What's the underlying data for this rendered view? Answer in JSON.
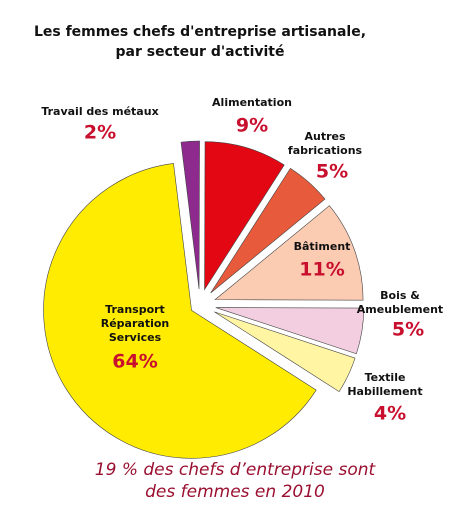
{
  "chart_data": {
    "type": "pie",
    "title": "Les femmes chefs d'entreprise artisanale,\npar secteur d'activité",
    "categories": [
      "Travail des métaux",
      "Alimentation",
      "Autres\nfabrications",
      "Bâtiment",
      "Bois &\nAmeublement",
      "Textile\nHabillement",
      "Transport\nRéparation\nServices"
    ],
    "values": [
      2,
      9,
      5,
      11,
      5,
      4,
      64
    ],
    "value_labels": [
      "2%",
      "9%",
      "5%",
      "11%",
      "5%",
      "4%",
      "64%"
    ],
    "colors": [
      "#8e2a8e",
      "#e30613",
      "#e85a3c",
      "#fbcbb2",
      "#f3cde0",
      "#fff5a3",
      "#ffec00"
    ],
    "caption": "19 % des chefs d’entreprise sont\ndes femmes en 2010"
  }
}
